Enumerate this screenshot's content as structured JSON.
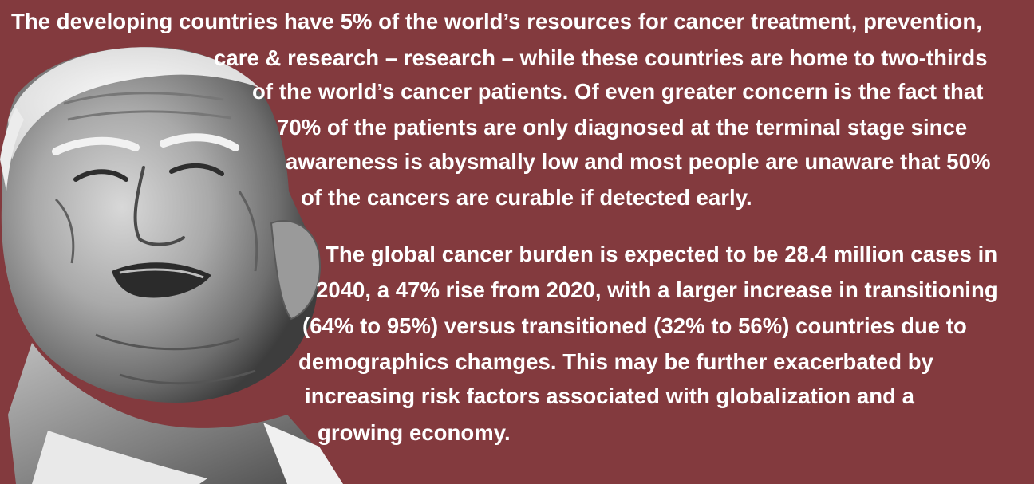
{
  "colors": {
    "background": "#833a3e",
    "text": "#ffffff"
  },
  "photo": {
    "icon": "elderly-man-portrait-icon"
  },
  "paragraph1": {
    "lines": [
      "The developing countries have 5% of the world’s resources for cancer treatment, prevention,",
      "care & research – research – while these countries are home to two-thirds",
      "of the world’s cancer patients. Of even greater concern is the fact that",
      "70% of the patients are only diagnosed at the terminal stage since",
      "awareness is abysmally low and most people are unaware that 50%",
      "of the cancers are curable if detected early."
    ]
  },
  "paragraph2": {
    "lines": [
      "The global cancer burden is expected to be 28.4 million cases in",
      "2040, a 47% rise from 2020, with a larger increase in transitioning",
      "(64% to 95%) versus transitioned (32% to 56%) countries due to",
      "demographics chamges. This may be further exacerbated by",
      "increasing risk factors associated with globalization and a",
      "growing economy."
    ]
  }
}
